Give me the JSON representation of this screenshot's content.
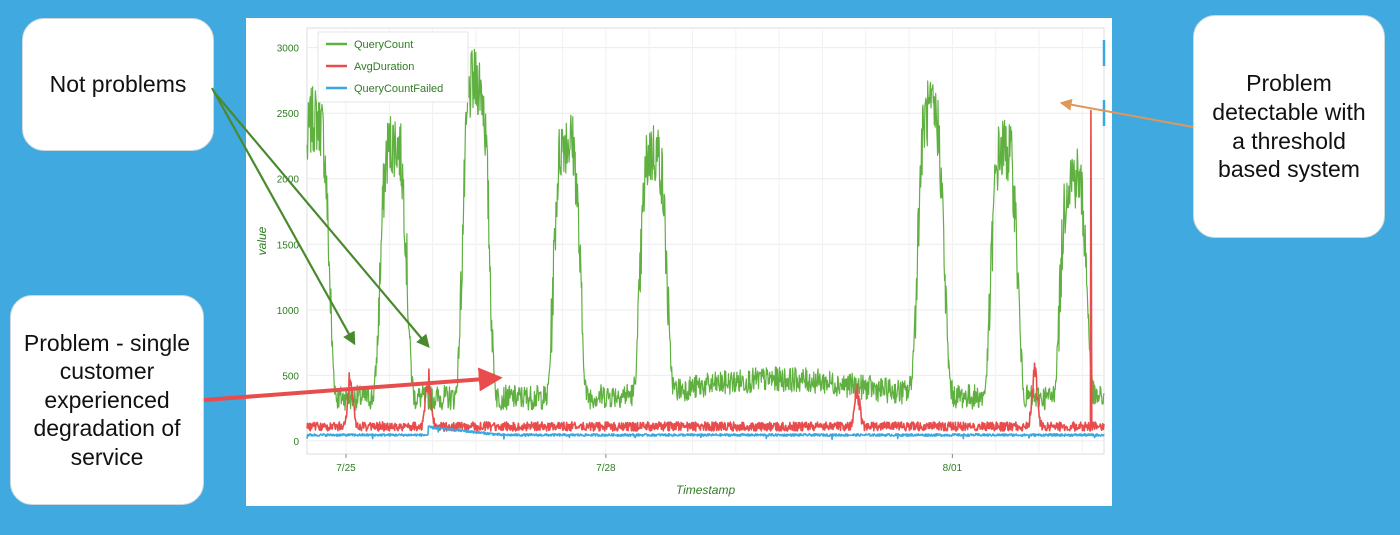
{
  "chart_data": {
    "type": "line",
    "title": "",
    "xlabel": "Timestamp",
    "ylabel": "value",
    "ylim": [
      -100,
      3150
    ],
    "yticks": [
      0,
      500,
      1000,
      1500,
      2000,
      2500,
      3000
    ],
    "x_tick_labels": [
      {
        "day": 0.0,
        "label": "7/25"
      },
      {
        "day": 3.0,
        "label": "7/28"
      },
      {
        "day": 7.0,
        "label": "8/01"
      }
    ],
    "xlim": [
      -0.45,
      8.75
    ],
    "grid": true,
    "legend": "top-left",
    "series": [
      {
        "name": "QueryCount",
        "color": "#5fb040"
      },
      {
        "name": "AvgDuration",
        "color": "#e84c4c"
      },
      {
        "name": "QueryCountFailed",
        "color": "#39a7e0"
      }
    ],
    "querycount_daily_peaks": [
      {
        "day": -0.35,
        "peak": 2450,
        "low": 300
      },
      {
        "day": 0.55,
        "peak": 2270,
        "low": 300
      },
      {
        "day": 1.5,
        "peak": 2730,
        "low": 300
      },
      {
        "day": 2.55,
        "peak": 2300,
        "low": 250
      },
      {
        "day": 3.55,
        "peak": 2200,
        "low": 280
      },
      {
        "day": 6.75,
        "peak": 2500,
        "low": 330
      },
      {
        "day": 7.6,
        "peak": 2220,
        "low": 300
      },
      {
        "day": 8.4,
        "peak": 2020,
        "low": 300
      }
    ],
    "avgduration_base": 110,
    "avgduration_spikes": [
      {
        "day": 0.05,
        "value": 560
      },
      {
        "day": 0.95,
        "value": 560
      },
      {
        "day": 5.9,
        "value": 470
      },
      {
        "day": 7.95,
        "value": 640
      },
      {
        "day": 8.6,
        "value": 2520
      }
    ],
    "querycountfailed_base": 45
  },
  "callouts": {
    "not_problems": "Not problems",
    "problem_single_customer": "Problem - single customer experienced degradation of service",
    "problem_threshold": "Problem detectable with a threshold based system"
  },
  "colors": {
    "background": "#3fa9e0",
    "panel": "#ffffff",
    "arrow_green": "#4a8a2e",
    "arrow_red": "#e84c4c",
    "arrow_orange": "#e0975a"
  }
}
